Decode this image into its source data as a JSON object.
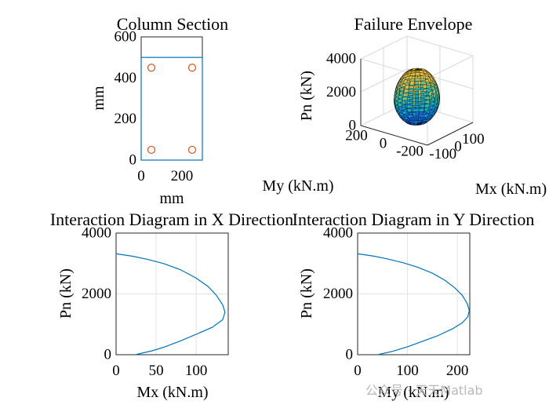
{
  "chart_data": [
    {
      "type": "scatter",
      "title": "Column Section",
      "xlabel": "mm",
      "ylabel": "mm",
      "xlim": [
        0,
        300
      ],
      "ylim": [
        0,
        600
      ],
      "xticks": [
        0,
        200
      ],
      "yticks": [
        0,
        200,
        400,
        600
      ],
      "section": {
        "width": 300,
        "height": 500
      },
      "points": [
        [
          50,
          450
        ],
        [
          250,
          450
        ],
        [
          50,
          50
        ],
        [
          250,
          50
        ]
      ],
      "colors": {
        "section": "#0072BD",
        "bars": "#D95319"
      }
    },
    {
      "type": "surface",
      "title": "Failure Envelope",
      "xlabel": "Mx (kN.m)",
      "ylabel": "My (kN.m)",
      "zlabel": "Pn (kN)",
      "xticks": [
        -100,
        0,
        100
      ],
      "yticks": [
        -200,
        0,
        200
      ],
      "zticks": [
        0,
        2000,
        4000
      ],
      "xlim": [
        -150,
        150
      ],
      "ylim": [
        -250,
        250
      ],
      "zlim": [
        0,
        4000
      ],
      "peak": 3300,
      "colormap": "parula"
    },
    {
      "type": "line",
      "title": "Interaction Diagram in X Direction",
      "xlabel": "Mx (kN.m)",
      "ylabel": "Pn (kN)",
      "xlim": [
        0,
        140
      ],
      "ylim": [
        0,
        4000
      ],
      "xticks": [
        0,
        50,
        100
      ],
      "yticks": [
        0,
        2000,
        4000
      ],
      "grid": true,
      "series": [
        {
          "x": [
            0,
            20,
            40,
            60,
            80,
            100,
            115,
            125,
            133,
            136,
            133,
            120,
            100,
            80,
            60,
            45,
            24
          ],
          "y": [
            3320,
            3240,
            3130,
            2990,
            2800,
            2520,
            2240,
            1960,
            1640,
            1400,
            1150,
            900,
            670,
            450,
            250,
            130,
            0
          ],
          "color": "#0072BD"
        }
      ]
    },
    {
      "type": "line",
      "title": "Interaction Diagram in Y Direction",
      "xlabel": "My (kN.m)",
      "ylabel": "Pn (kN)",
      "xlim": [
        0,
        225
      ],
      "ylim": [
        0,
        4000
      ],
      "xticks": [
        0,
        100,
        200
      ],
      "yticks": [
        0,
        2000,
        4000
      ],
      "grid": true,
      "series": [
        {
          "x": [
            0,
            30,
            60,
            90,
            120,
            150,
            175,
            195,
            210,
            220,
            224,
            221,
            210,
            190,
            160,
            130,
            100,
            70,
            40
          ],
          "y": [
            3320,
            3250,
            3150,
            3030,
            2880,
            2680,
            2450,
            2200,
            1950,
            1680,
            1450,
            1250,
            1050,
            850,
            620,
            440,
            260,
            110,
            0
          ],
          "color": "#0072BD"
        }
      ]
    }
  ],
  "watermark": "公众号 · 天天Matlab"
}
